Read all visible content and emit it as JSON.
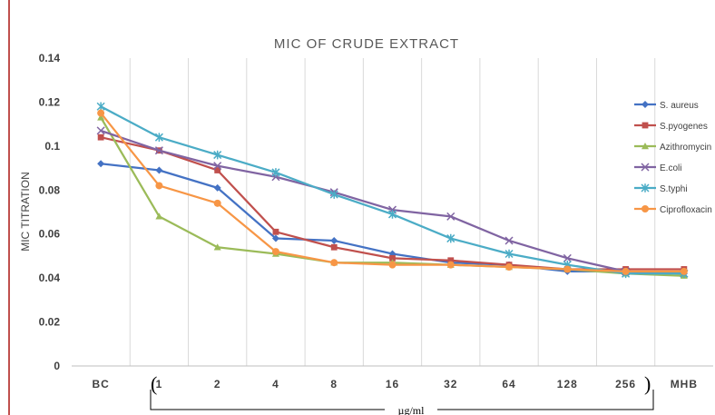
{
  "chart_data": {
    "type": "line",
    "title": "MIC OF CRUDE EXTRACT",
    "ylabel": "MIC TITRATION",
    "xlabel": "",
    "unit_label": "µg/ml",
    "categories": [
      "BC",
      "1",
      "2",
      "4",
      "8",
      "16",
      "32",
      "64",
      "128",
      "256",
      "MHB"
    ],
    "ylim": [
      0,
      0.14
    ],
    "yticks": [
      "0",
      "0.02",
      "0.04",
      "0.06",
      "0.08",
      "0.1",
      "0.12",
      "0.14"
    ],
    "grid": "vertical",
    "legend_position": "right",
    "series": [
      {
        "name": "S. aureus",
        "color": "#4472c4",
        "marker": "diamond",
        "values": [
          0.092,
          0.089,
          0.081,
          0.058,
          0.057,
          0.051,
          0.047,
          0.046,
          0.043,
          0.043,
          0.042
        ]
      },
      {
        "name": "S.pyogenes",
        "color": "#c0504d",
        "marker": "square",
        "values": [
          0.104,
          0.098,
          0.089,
          0.061,
          0.054,
          0.049,
          0.048,
          0.046,
          0.044,
          0.044,
          0.044
        ]
      },
      {
        "name": "Azithromycin",
        "color": "#9bbb59",
        "marker": "triangle",
        "values": [
          0.113,
          0.068,
          0.054,
          0.051,
          0.047,
          0.047,
          0.046,
          0.045,
          0.044,
          0.042,
          0.041
        ]
      },
      {
        "name": "E.coli",
        "color": "#8064a2",
        "marker": "x",
        "values": [
          0.107,
          0.098,
          0.091,
          0.086,
          0.079,
          0.071,
          0.068,
          0.057,
          0.049,
          0.043,
          0.042
        ]
      },
      {
        "name": "S.typhi",
        "color": "#4bacc6",
        "marker": "star",
        "values": [
          0.118,
          0.104,
          0.096,
          0.088,
          0.078,
          0.069,
          0.058,
          0.051,
          0.046,
          0.042,
          0.042
        ]
      },
      {
        "name": "Ciprofloxacin",
        "color": "#f79646",
        "marker": "circle",
        "values": [
          0.115,
          0.082,
          0.074,
          0.052,
          0.047,
          0.046,
          0.046,
          0.045,
          0.044,
          0.043,
          0.043
        ]
      }
    ]
  }
}
